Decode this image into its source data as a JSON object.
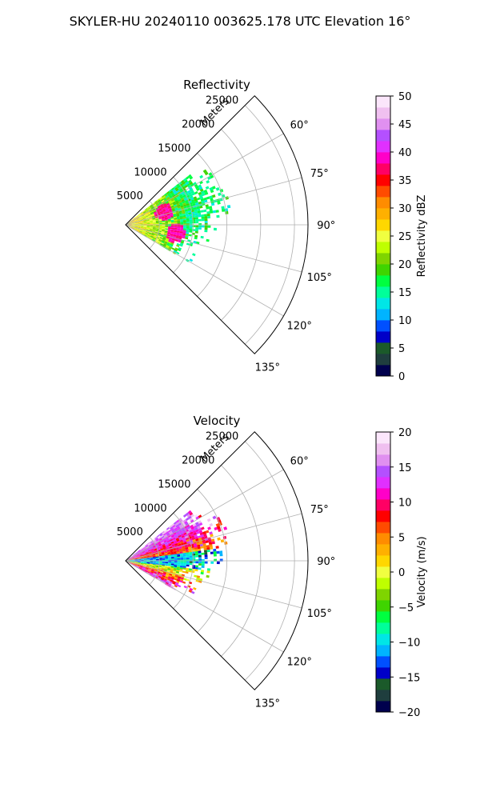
{
  "figure": {
    "title": "SKYLER-HU  20240110  003625.178 UTC Elevation 16°"
  },
  "chart_data": [
    {
      "type": "heatmap",
      "projection": "polar-sector",
      "title": "Reflectivity",
      "radial_label": "Meters",
      "azimuth_range_deg": [
        45,
        135
      ],
      "azimuth_ticks": [
        60,
        75,
        90,
        105,
        120,
        135
      ],
      "azimuth_tick_labels": [
        "60°",
        "75°",
        "90°",
        "105°",
        "120°",
        "135°"
      ],
      "range_ticks": [
        5000,
        10000,
        15000,
        20000,
        25000
      ],
      "range_tick_labels": [
        "5000",
        "10000",
        "15000",
        "20000",
        "25000"
      ],
      "range_max": 27000,
      "grid": true,
      "data_extent": {
        "near_range_m": 0,
        "far_range_m": [
          {
            "az": 62,
            "r": 12000
          },
          {
            "az": 75,
            "r": 13500
          },
          {
            "az": 90,
            "r": 11500
          },
          {
            "az": 105,
            "r": 9000
          },
          {
            "az": 118,
            "r": 8500
          }
        ],
        "description_values": "mostly 15-30 dBZ with 35-40 dBZ cores near (az 72, r 6000) and (az 100, r 7500)"
      },
      "colorbar": {
        "label": "Reflectivity dBZ",
        "vmin": 0,
        "vmax": 50,
        "ticks": [
          0,
          5,
          10,
          15,
          20,
          25,
          30,
          35,
          40,
          45,
          50
        ],
        "tick_labels": [
          "0",
          "5",
          "10",
          "15",
          "20",
          "25",
          "30",
          "35",
          "40",
          "45",
          "50"
        ],
        "colors": [
          "#00004d",
          "#1f3e3e",
          "#1b5a2a",
          "#0000c8",
          "#0050ff",
          "#00b4ff",
          "#00e6e6",
          "#00ff9a",
          "#00ff40",
          "#3fd400",
          "#7fd400",
          "#bfff00",
          "#f0ff40",
          "#ffd700",
          "#ffb000",
          "#ff8c00",
          "#ff4b00",
          "#ff0000",
          "#ff0064",
          "#ff00c8",
          "#e030ff",
          "#b450ff",
          "#e090f0",
          "#f0c0f0",
          "#fbe6fb"
        ]
      }
    },
    {
      "type": "heatmap",
      "projection": "polar-sector",
      "title": "Velocity",
      "radial_label": "Meters",
      "azimuth_range_deg": [
        45,
        135
      ],
      "azimuth_ticks": [
        60,
        75,
        90,
        105,
        120,
        135
      ],
      "azimuth_tick_labels": [
        "60°",
        "75°",
        "90°",
        "105°",
        "120°",
        "135°"
      ],
      "range_ticks": [
        5000,
        10000,
        15000,
        20000,
        25000
      ],
      "range_tick_labels": [
        "5000",
        "10000",
        "15000",
        "20000",
        "25000"
      ],
      "range_max": 27000,
      "grid": true,
      "data_extent": {
        "near_range_m": 0,
        "far_range_m": [
          {
            "az": 62,
            "r": 12000
          },
          {
            "az": 75,
            "r": 13500
          },
          {
            "az": 90,
            "r": 11500
          },
          {
            "az": 105,
            "r": 9000
          },
          {
            "az": 118,
            "r": 8500
          }
        ],
        "description_values": "+5 to +15 m/s on the north side, -10 to -15 m/s near 90°, mixed -5 to +15 m/s on the south side"
      },
      "colorbar": {
        "label": "Velocity (m/s)",
        "vmin": -20,
        "vmax": 20,
        "ticks": [
          -20,
          -15,
          -10,
          -5,
          0,
          5,
          10,
          15,
          20
        ],
        "tick_labels": [
          "−20",
          "−15",
          "−10",
          "−5",
          "0",
          "5",
          "10",
          "15",
          "20"
        ],
        "colors": [
          "#00004d",
          "#1f3e3e",
          "#1b5a2a",
          "#0000c8",
          "#0050ff",
          "#00b4ff",
          "#00e6e6",
          "#00ff9a",
          "#00ff40",
          "#3fd400",
          "#7fd400",
          "#bfff00",
          "#f0ff40",
          "#ffd700",
          "#ffb000",
          "#ff8c00",
          "#ff4b00",
          "#ff0000",
          "#ff0064",
          "#ff00c8",
          "#e030ff",
          "#b450ff",
          "#e090f0",
          "#f0c0f0",
          "#fbe6fb"
        ]
      }
    }
  ]
}
